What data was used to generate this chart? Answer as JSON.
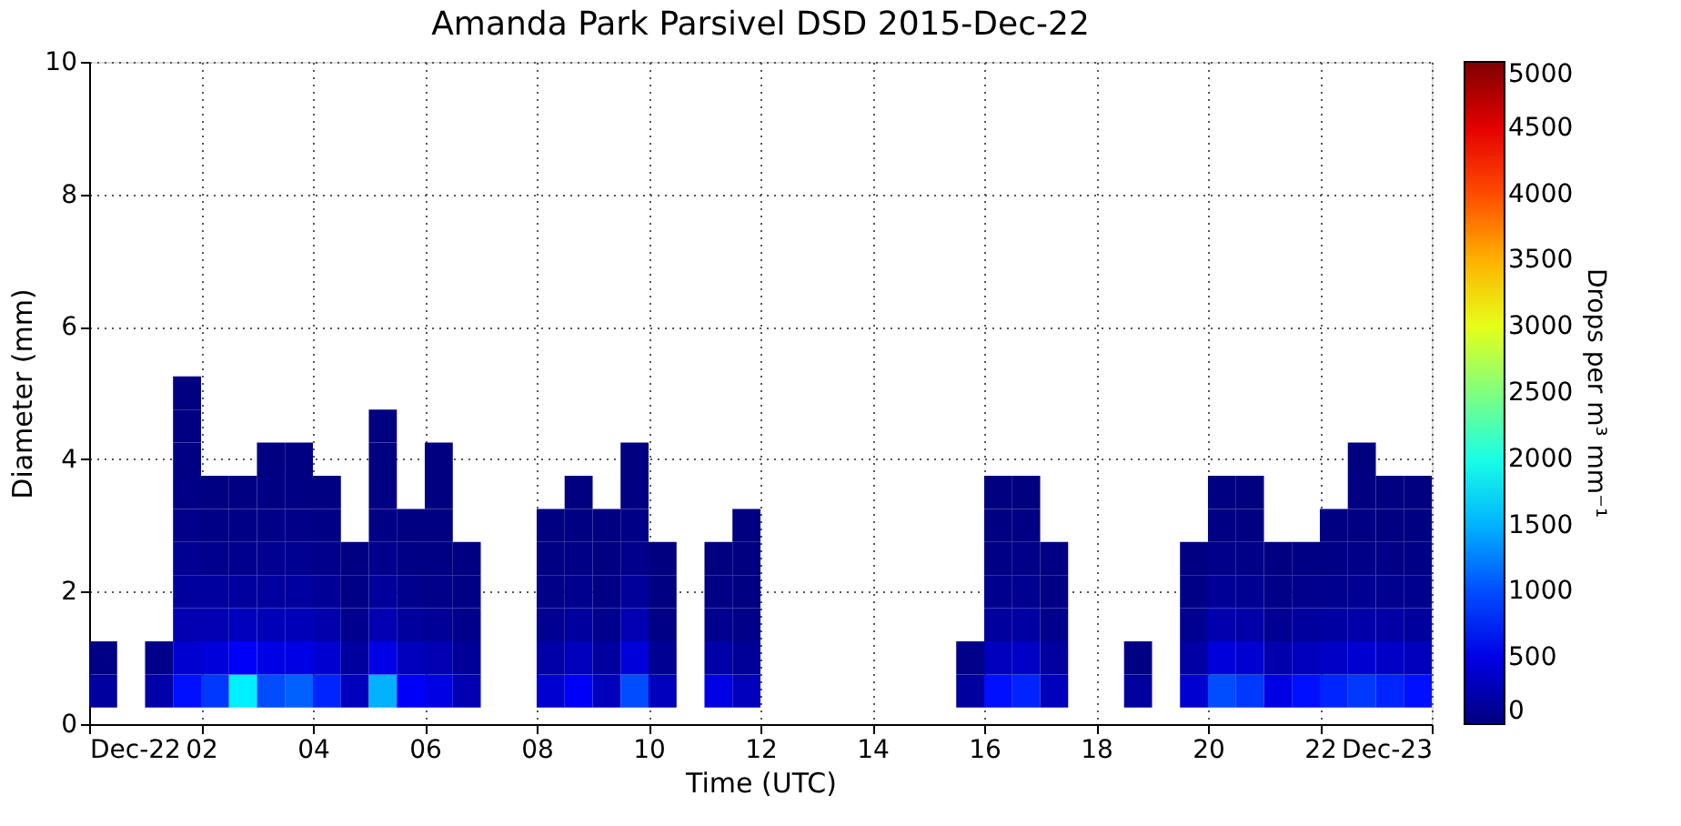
{
  "chart_data": {
    "type": "scatter",
    "title": "Amanda Park Parsivel DSD 2015-Dec-22",
    "xlabel": "Time (UTC)",
    "ylabel": "Diameter (mm)",
    "clabel": "Drops per m³ mm⁻¹",
    "marker": "square",
    "x": [
      0.25,
      1.25,
      1.75,
      2.25,
      2.75,
      3.25,
      3.75,
      4.25,
      4.75,
      5.25,
      5.75,
      6.25,
      6.75,
      8.25,
      8.75,
      9.25,
      9.75,
      10.25,
      11.25,
      11.75,
      15.75,
      16.25,
      16.75,
      17.25,
      18.75,
      19.75,
      20.25,
      20.75,
      21.25,
      21.75,
      22.25,
      22.75,
      23.25,
      23.75,
      0.25,
      1.25,
      1.75,
      2.25,
      2.75,
      3.25,
      3.75,
      4.25,
      4.75,
      5.25,
      5.75,
      6.25,
      6.75,
      8.25,
      8.75,
      9.25,
      9.75,
      10.25,
      11.25,
      11.75,
      15.75,
      16.25,
      16.75,
      17.25,
      18.75,
      19.75,
      20.25,
      20.75,
      21.25,
      21.75,
      22.25,
      22.75,
      23.25,
      23.75,
      1.75,
      2.25,
      2.75,
      3.25,
      3.75,
      4.25,
      4.75,
      5.25,
      5.75,
      6.25,
      6.75,
      8.25,
      8.75,
      9.25,
      9.75,
      10.25,
      11.25,
      11.75,
      16.25,
      16.75,
      17.25,
      19.75,
      20.25,
      20.75,
      21.25,
      21.75,
      22.25,
      22.75,
      23.25,
      23.75,
      1.75,
      2.25,
      2.75,
      3.25,
      3.75,
      4.25,
      4.75,
      5.25,
      5.75,
      6.25,
      6.75,
      8.25,
      8.75,
      9.25,
      9.75,
      10.25,
      11.25,
      11.75,
      16.25,
      16.75,
      17.25,
      19.75,
      20.25,
      20.75,
      21.25,
      21.75,
      22.25,
      22.75,
      23.25,
      23.75,
      1.75,
      2.25,
      2.75,
      3.25,
      3.75,
      4.25,
      4.75,
      5.25,
      5.75,
      6.25,
      6.75,
      8.25,
      8.75,
      9.25,
      9.75,
      10.25,
      11.25,
      11.75,
      16.25,
      16.75,
      17.25,
      19.75,
      20.25,
      20.75,
      21.25,
      21.75,
      22.25,
      22.75,
      23.25,
      23.75,
      1.75,
      2.25,
      2.75,
      3.25,
      3.75,
      4.25,
      5.25,
      5.75,
      6.25,
      8.25,
      8.75,
      9.25,
      9.75,
      11.75,
      16.25,
      16.75,
      20.25,
      20.75,
      22.25,
      22.75,
      23.25,
      23.75,
      1.75,
      2.25,
      2.75,
      3.25,
      3.75,
      4.25,
      5.25,
      6.25,
      8.75,
      9.75,
      16.25,
      16.75,
      20.25,
      20.75,
      22.75,
      23.25,
      23.75,
      1.75,
      3.25,
      3.75,
      5.25,
      6.25,
      9.75,
      22.75,
      1.75,
      5.25,
      1.75
    ],
    "values": [
      0.5,
      0.5,
      0.5,
      0.5,
      0.5,
      0.5,
      0.5,
      0.5,
      0.5,
      0.5,
      0.5,
      0.5,
      0.5,
      0.5,
      0.5,
      0.5,
      0.5,
      0.5,
      0.5,
      0.5,
      0.5,
      0.5,
      0.5,
      0.5,
      0.5,
      0.5,
      0.5,
      0.5,
      0.5,
      0.5,
      0.5,
      0.5,
      0.5,
      0.5,
      1,
      1,
      1,
      1,
      1,
      1,
      1,
      1,
      1,
      1,
      1,
      1,
      1,
      1,
      1,
      1,
      1,
      1,
      1,
      1,
      1,
      1,
      1,
      1,
      1,
      1,
      1,
      1,
      1,
      1,
      1,
      1,
      1,
      1,
      1.5,
      1.5,
      1.5,
      1.5,
      1.5,
      1.5,
      1.5,
      1.5,
      1.5,
      1.5,
      1.5,
      1.5,
      1.5,
      1.5,
      1.5,
      1.5,
      1.5,
      1.5,
      1.5,
      1.5,
      1.5,
      1.5,
      1.5,
      1.5,
      1.5,
      1.5,
      1.5,
      1.5,
      1.5,
      1.5,
      2,
      2,
      2,
      2,
      2,
      2,
      2,
      2,
      2,
      2,
      2,
      2,
      2,
      2,
      2,
      2,
      2,
      2,
      2,
      2,
      2,
      2,
      2,
      2,
      2,
      2,
      2,
      2,
      2,
      2,
      2.5,
      2.5,
      2.5,
      2.5,
      2.5,
      2.5,
      2.5,
      2.5,
      2.5,
      2.5,
      2.5,
      2.5,
      2.5,
      2.5,
      2.5,
      2.5,
      2.5,
      2.5,
      2.5,
      2.5,
      2.5,
      2.5,
      2.5,
      2.5,
      2.5,
      2.5,
      2.5,
      2.5,
      2.5,
      2.5,
      3,
      3,
      3,
      3,
      3,
      3,
      3,
      3,
      3,
      3,
      3,
      3,
      3,
      3,
      3,
      3,
      3,
      3,
      3,
      3,
      3,
      3,
      3.5,
      3.5,
      3.5,
      3.5,
      3.5,
      3.5,
      3.5,
      3.5,
      3.5,
      3.5,
      3.5,
      3.5,
      3.5,
      3.5,
      3.5,
      3.5,
      3.5,
      4,
      4,
      4,
      4,
      4,
      4,
      4,
      4.5,
      4.5,
      5
    ],
    "cvalues": [
      150,
      200,
      700,
      900,
      1800,
      1000,
      1100,
      800,
      300,
      1500,
      600,
      500,
      250,
      400,
      600,
      300,
      1000,
      300,
      500,
      300,
      150,
      700,
      800,
      300,
      150,
      400,
      1000,
      900,
      500,
      700,
      800,
      900,
      800,
      700,
      40,
      60,
      400,
      450,
      600,
      500,
      500,
      400,
      150,
      500,
      300,
      250,
      120,
      200,
      300,
      150,
      450,
      100,
      200,
      120,
      50,
      300,
      350,
      150,
      30,
      180,
      450,
      400,
      220,
      300,
      350,
      400,
      350,
      300,
      250,
      250,
      300,
      280,
      280,
      220,
      80,
      250,
      150,
      120,
      60,
      100,
      150,
      80,
      250,
      40,
      80,
      50,
      150,
      170,
      70,
      90,
      230,
      200,
      100,
      150,
      170,
      200,
      180,
      150,
      150,
      150,
      150,
      150,
      160,
      120,
      40,
      140,
      80,
      60,
      30,
      50,
      80,
      40,
      130,
      20,
      30,
      20,
      80,
      90,
      35,
      40,
      120,
      100,
      50,
      70,
      80,
      100,
      90,
      80,
      100,
      80,
      80,
      90,
      90,
      70,
      20,
      80,
      40,
      30,
      15,
      30,
      40,
      20,
      70,
      10,
      10,
      10,
      40,
      50,
      15,
      20,
      60,
      50,
      20,
      30,
      40,
      50,
      45,
      40,
      60,
      40,
      40,
      50,
      50,
      40,
      40,
      20,
      15,
      15,
      20,
      10,
      40,
      10,
      20,
      25,
      30,
      25,
      20,
      25,
      20,
      20,
      40,
      20,
      20,
      30,
      30,
      20,
      20,
      10,
      10,
      20,
      10,
      10,
      15,
      10,
      15,
      10,
      10,
      30,
      15,
      15,
      10,
      10,
      10,
      10,
      20,
      10,
      10
    ],
    "xlim": [
      0,
      24
    ],
    "xticks": [
      {
        "value": 0,
        "label": "Dec-22"
      },
      {
        "value": 2,
        "label": "02"
      },
      {
        "value": 4,
        "label": "04"
      },
      {
        "value": 6,
        "label": "06"
      },
      {
        "value": 8,
        "label": "08"
      },
      {
        "value": 10,
        "label": "10"
      },
      {
        "value": 12,
        "label": "12"
      },
      {
        "value": 14,
        "label": "14"
      },
      {
        "value": 16,
        "label": "16"
      },
      {
        "value": 18,
        "label": "18"
      },
      {
        "value": 20,
        "label": "20"
      },
      {
        "value": 22,
        "label": "22"
      },
      {
        "value": 24,
        "label": "Dec-23"
      }
    ],
    "ylim": [
      0,
      10
    ],
    "yticks": [
      0,
      2,
      4,
      6,
      8,
      10
    ],
    "clim": [
      0,
      5000
    ],
    "cticks": [
      0,
      500,
      1000,
      1500,
      2000,
      2500,
      3000,
      3500,
      4000,
      4500,
      5000
    ],
    "grid": true
  }
}
